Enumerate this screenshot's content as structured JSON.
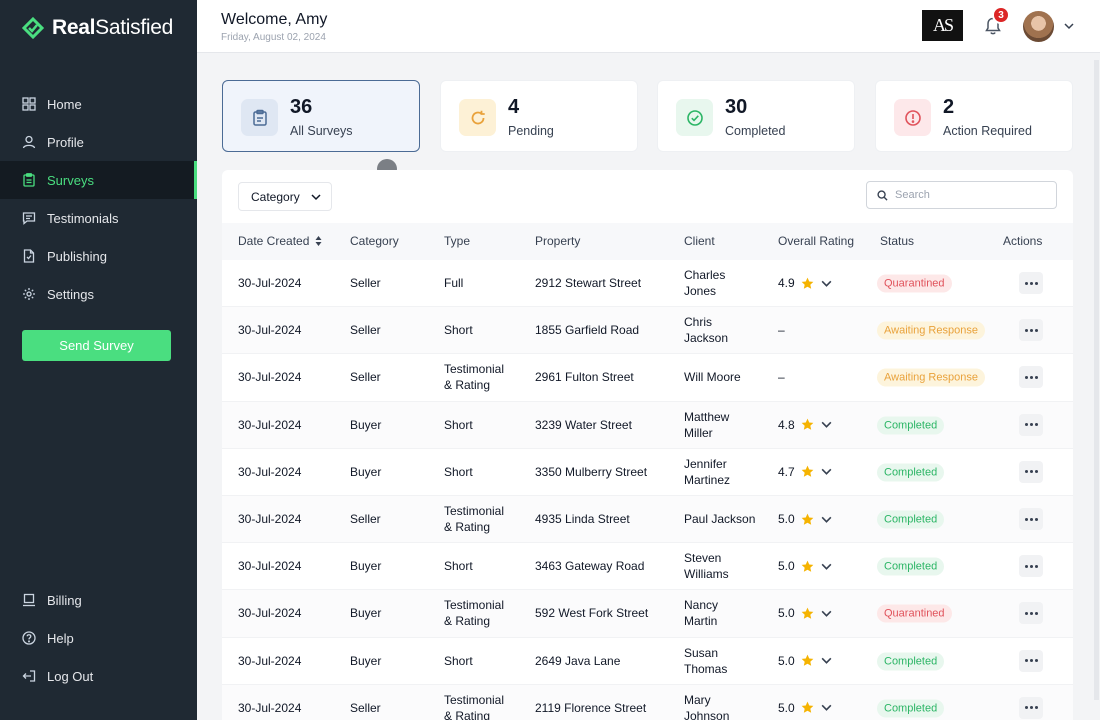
{
  "brand": {
    "name_bold": "Real",
    "name_rest": "Satisfied"
  },
  "sidebar": {
    "items": [
      {
        "label": "Home",
        "icon": "grid-icon"
      },
      {
        "label": "Profile",
        "icon": "user-icon"
      },
      {
        "label": "Surveys",
        "icon": "clipboard-icon",
        "active": true
      },
      {
        "label": "Testimonials",
        "icon": "chat-icon"
      },
      {
        "label": "Publishing",
        "icon": "document-icon"
      },
      {
        "label": "Settings",
        "icon": "gear-icon"
      }
    ],
    "send_button": "Send Survey",
    "bottom_items": [
      {
        "label": "Billing",
        "icon": "laptop-icon"
      },
      {
        "label": "Help",
        "icon": "help-icon"
      },
      {
        "label": "Log Out",
        "icon": "logout-icon"
      }
    ]
  },
  "header": {
    "welcome": "Welcome, Amy",
    "date": "Friday, August 02, 2024",
    "logo_text": "AS",
    "notifications": "3"
  },
  "stats": [
    {
      "value": "36",
      "label": "All Surveys",
      "icon": "clipboard-icon",
      "selected": true
    },
    {
      "value": "4",
      "label": "Pending",
      "icon": "refresh-icon"
    },
    {
      "value": "30",
      "label": "Completed",
      "icon": "check-circle-icon"
    },
    {
      "value": "2",
      "label": "Action Required",
      "icon": "alert-circle-icon"
    }
  ],
  "filters": {
    "category_label": "Category",
    "search_placeholder": "Search"
  },
  "table": {
    "columns": [
      "Date Created",
      "Category",
      "Type",
      "Property",
      "Client",
      "Overall Rating",
      "Status",
      "Actions"
    ],
    "rows": [
      {
        "date": "30-Jul-2024",
        "category": "Seller",
        "type": [
          "Full"
        ],
        "property": "2912 Stewart Street",
        "client": [
          "Charles",
          "Jones"
        ],
        "rating": "4.9",
        "status": "Quarantined"
      },
      {
        "date": "30-Jul-2024",
        "category": "Seller",
        "type": [
          "Short"
        ],
        "property": "1855 Garfield Road",
        "client": [
          "Chris",
          "Jackson"
        ],
        "rating": "–",
        "status": "Awaiting Response"
      },
      {
        "date": "30-Jul-2024",
        "category": "Seller",
        "type": [
          "Testimonial",
          "& Rating"
        ],
        "property": "2961 Fulton Street",
        "client": [
          "Will Moore"
        ],
        "rating": "–",
        "status": "Awaiting Response"
      },
      {
        "date": "30-Jul-2024",
        "category": "Buyer",
        "type": [
          "Short"
        ],
        "property": "3239 Water Street",
        "client": [
          "Matthew",
          "Miller"
        ],
        "rating": "4.8",
        "status": "Completed"
      },
      {
        "date": "30-Jul-2024",
        "category": "Buyer",
        "type": [
          "Short"
        ],
        "property": "3350 Mulberry Street",
        "client": [
          "Jennifer",
          "Martinez"
        ],
        "rating": "4.7",
        "status": "Completed"
      },
      {
        "date": "30-Jul-2024",
        "category": "Seller",
        "type": [
          "Testimonial",
          "& Rating"
        ],
        "property": "4935 Linda Street",
        "client": [
          "Paul Jackson"
        ],
        "rating": "5.0",
        "status": "Completed"
      },
      {
        "date": "30-Jul-2024",
        "category": "Buyer",
        "type": [
          "Short"
        ],
        "property": "3463 Gateway Road",
        "client": [
          "Steven",
          "Williams"
        ],
        "rating": "5.0",
        "status": "Completed"
      },
      {
        "date": "30-Jul-2024",
        "category": "Buyer",
        "type": [
          "Testimonial",
          "& Rating"
        ],
        "property": "592 West Fork Street",
        "client": [
          "Nancy",
          "Martin"
        ],
        "rating": "5.0",
        "status": "Quarantined"
      },
      {
        "date": "30-Jul-2024",
        "category": "Buyer",
        "type": [
          "Short"
        ],
        "property": "2649 Java Lane",
        "client": [
          "Susan",
          "Thomas"
        ],
        "rating": "5.0",
        "status": "Completed"
      },
      {
        "date": "30-Jul-2024",
        "category": "Seller",
        "type": [
          "Testimonial",
          "& Rating"
        ],
        "property": "2119 Florence Street",
        "client": [
          "Mary",
          "Johnson"
        ],
        "rating": "5.0",
        "status": "Completed"
      }
    ]
  },
  "colors": {
    "sidebar_bg": "#1f2933",
    "accent": "#4ade80",
    "star": "#f5b301"
  }
}
